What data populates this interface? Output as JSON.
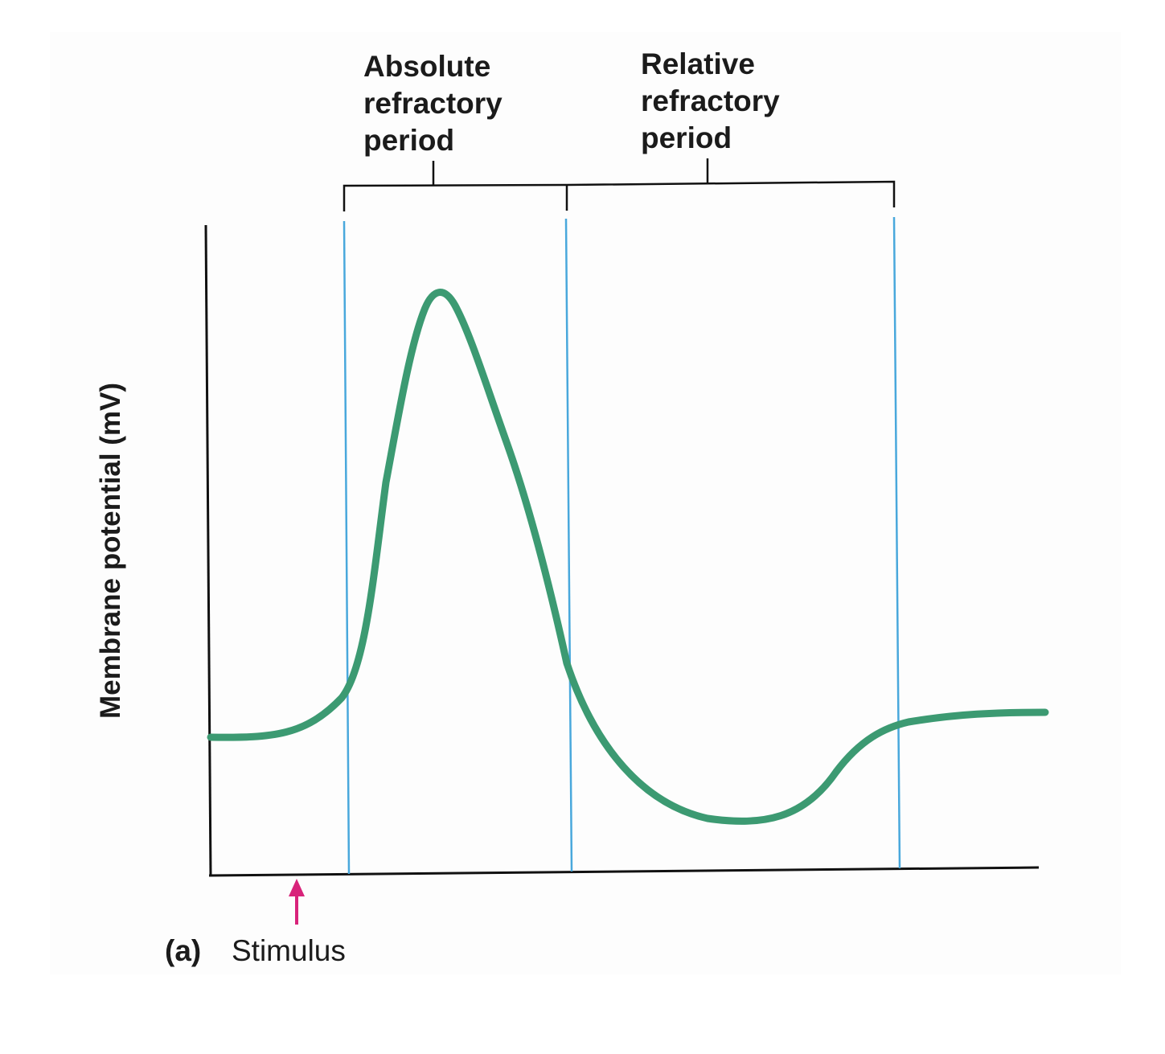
{
  "figure": {
    "panel_letter": "(a)",
    "y_axis_label": "Membrane potential (mV)",
    "stimulus_label": "Stimulus",
    "phases": {
      "absolute": {
        "lines": [
          "Absolute",
          "refractory",
          "period"
        ]
      },
      "relative": {
        "lines": [
          "Relative",
          "refractory",
          "period"
        ]
      }
    }
  },
  "colors": {
    "trace": "#3c9a72",
    "period_boundary": "#49a8dc",
    "stimulus_arrow": "#d8237a",
    "axes": "#111111",
    "text": "#1b1b1b"
  },
  "icons": {
    "stimulus": "up-arrow-icon"
  }
}
